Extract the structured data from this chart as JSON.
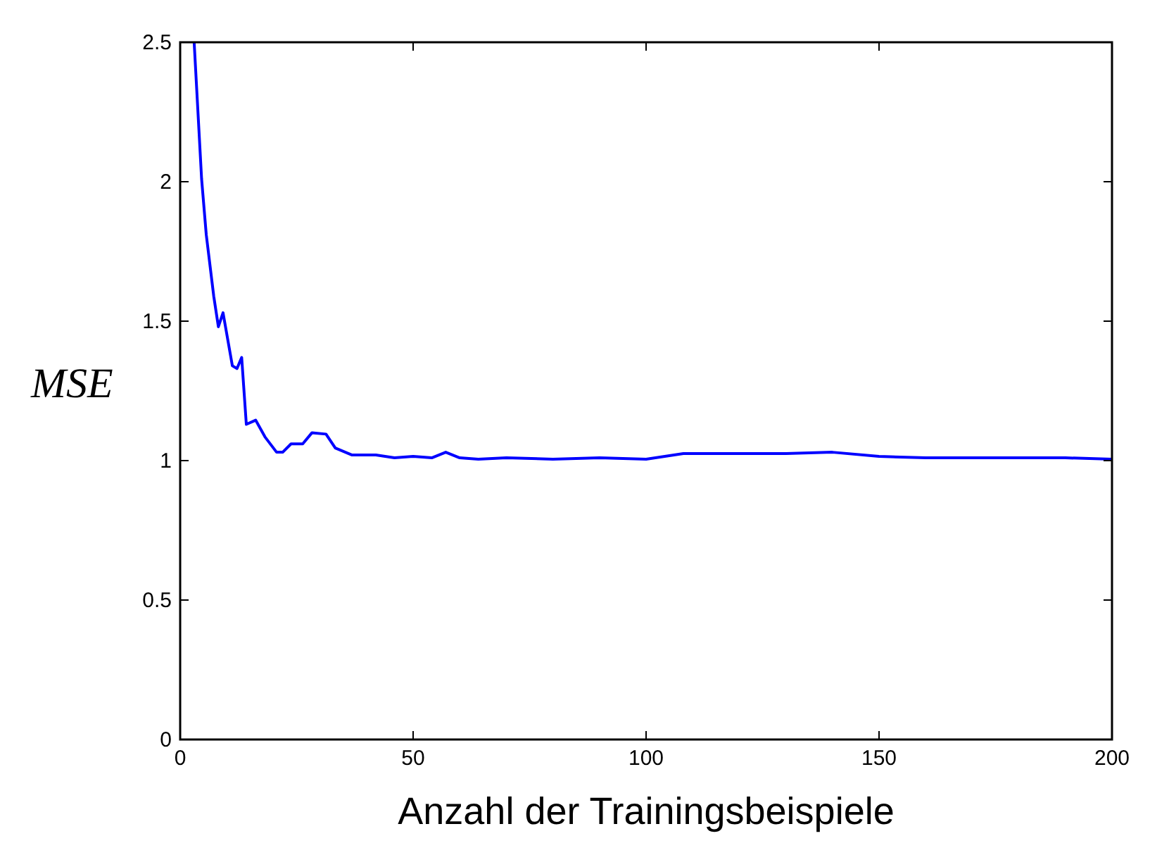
{
  "chart_data": {
    "type": "line",
    "xlabel": "Anzahl der Trainingsbeispiele",
    "ylabel": "MSE",
    "x": [
      3,
      4.6,
      5.6,
      7.2,
      8.2,
      9.2,
      11.2,
      12.2,
      13.2,
      14.2,
      16.2,
      18.2,
      20.7,
      22,
      23.8,
      26.3,
      28.3,
      31.3,
      33.3,
      36.9,
      42,
      46,
      50,
      54,
      57,
      60,
      64,
      70,
      80,
      90,
      100,
      104,
      108,
      120,
      130,
      140,
      150,
      160,
      170,
      180,
      190,
      200
    ],
    "series": [
      {
        "color": "#0000ff",
        "values": [
          2.5,
          2.01,
          1.81,
          1.59,
          1.48,
          1.53,
          1.34,
          1.33,
          1.37,
          1.13,
          1.145,
          1.085,
          1.03,
          1.03,
          1.06,
          1.06,
          1.1,
          1.095,
          1.045,
          1.02,
          1.02,
          1.01,
          1.015,
          1.01,
          1.03,
          1.01,
          1.005,
          1.01,
          1.005,
          1.01,
          1.005,
          1.015,
          1.025,
          1.025,
          1.025,
          1.03,
          1.015,
          1.01,
          1.01,
          1.01,
          1.01,
          1.005
        ]
      }
    ],
    "xlim": [
      0,
      200
    ],
    "ylim": [
      0,
      2.5
    ],
    "xticks": [
      0,
      50,
      100,
      150,
      200
    ],
    "yticks": [
      0,
      0.5,
      1,
      1.5,
      2,
      2.5
    ],
    "grid": false,
    "line_style": "solid"
  }
}
